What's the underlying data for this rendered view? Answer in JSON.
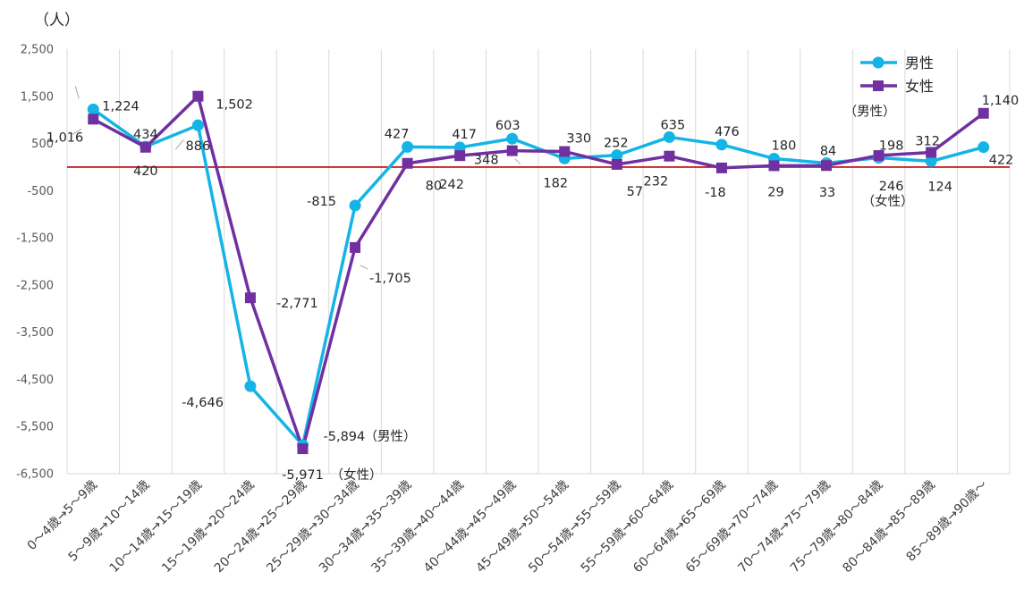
{
  "chart_data": {
    "type": "line",
    "unit_label": "（人）",
    "categories": [
      "0～4歳→5～9歳",
      "5～9歳→10～14歳",
      "10～14歳→15～19歳",
      "15～19歳→20～24歳",
      "20～24歳→25～29歳",
      "25～29歳→30～34歳",
      "30～34歳→35～39歳",
      "35～39歳→40～44歳",
      "40～44歳→45～49歳",
      "45～49歳→50～54歳",
      "50～54歳→55～59歳",
      "55～59歳→60～64歳",
      "60～64歳→65～69歳",
      "65～69歳→70～74歳",
      "70～74歳→75～79歳",
      "75～79歳→80～84歳",
      "80～84歳→85～89歳",
      "85～89歳→90歳～"
    ],
    "ylim": [
      -6500,
      2500
    ],
    "yticks": [
      2500,
      1500,
      500,
      -500,
      -1500,
      -2500,
      -3500,
      -4500,
      -5500,
      -6500
    ],
    "ytick_labels": [
      "2,500",
      "1,500",
      "500",
      "-500",
      "-1,500",
      "-2,500",
      "-3,500",
      "-4,500",
      "-5,500",
      "-6,500"
    ],
    "series": [
      {
        "name": "男性",
        "color": "#14b4e6",
        "marker": "circle",
        "values": [
          1224,
          434,
          886,
          -4646,
          -5894,
          -815,
          427,
          417,
          603,
          182,
          252,
          635,
          476,
          180,
          84,
          198,
          124,
          422
        ],
        "labels": [
          "1,224",
          "434",
          "886",
          "-4,646",
          "-5,894",
          "-815",
          "427",
          "417",
          "603",
          "182",
          "252",
          "635",
          "476",
          "180",
          "84",
          "198",
          "124",
          "422"
        ]
      },
      {
        "name": "女性",
        "color": "#7030a0",
        "marker": "square",
        "values": [
          1016,
          420,
          1502,
          -2771,
          -5971,
          -1705,
          80,
          242,
          348,
          330,
          57,
          232,
          -18,
          29,
          33,
          246,
          312,
          1140
        ],
        "labels": [
          "1,016",
          "420",
          "1,502",
          "-2,771",
          "-5,971",
          "-1,705",
          "80",
          "242",
          "348",
          "330",
          "57",
          "232",
          "-18",
          "29",
          "33",
          "246",
          "312",
          "1,140"
        ]
      }
    ],
    "reference_line": {
      "value": 0,
      "color": "#c00000"
    },
    "annotations": {
      "male_tag": "（男性）",
      "female_tag": "（女性）"
    },
    "legend": {
      "position": "top-right"
    },
    "grid": "vertical"
  }
}
